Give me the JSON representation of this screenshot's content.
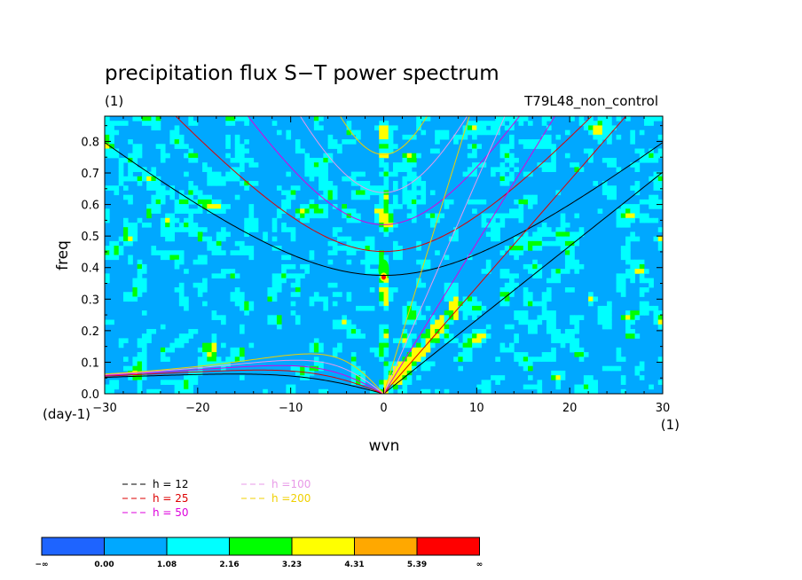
{
  "chart_data": {
    "type": "heatmap",
    "title": "precipitation flux S−T power spectrum",
    "units_left": "(1)",
    "subtitle_right": "T79L48_non_control",
    "xlabel": "wvn",
    "ylabel": "freq",
    "x_unit": "(1)",
    "y_unit": "(day-1)",
    "xlim": [
      -30,
      30
    ],
    "ylim": [
      0,
      0.88
    ],
    "x_ticks": [
      "−30",
      "−20",
      "−10",
      "0",
      "10",
      "20",
      "30"
    ],
    "x_tick_values": [
      -30,
      -20,
      -10,
      0,
      10,
      20,
      30
    ],
    "y_ticks": [
      "0.0",
      "0.1",
      "0.2",
      "0.3",
      "0.4",
      "0.5",
      "0.6",
      "0.7",
      "0.8"
    ],
    "y_tick_values": [
      0,
      0.1,
      0.2,
      0.3,
      0.4,
      0.5,
      0.6,
      0.7,
      0.8
    ],
    "colorbar": {
      "labels": [
        "−∞",
        "0.00",
        "1.08",
        "2.16",
        "3.23",
        "4.31",
        "5.39",
        "∞"
      ],
      "colors": [
        "#1e64ff",
        "#00a8ff",
        "#00ffff",
        "#00ff00",
        "#ffff00",
        "#ffa800",
        "#ff0000"
      ]
    },
    "field_colors": {
      "background": "#00a8ff",
      "low": "#00ffff",
      "mid": "#00ff00",
      "high": "#ffff00",
      "peak": "#ff0000"
    },
    "dispersion_curves": [
      {
        "name": "h = 12",
        "h": 12,
        "color": "#000000"
      },
      {
        "name": "h = 25",
        "h": 25,
        "color": "#dd0000"
      },
      {
        "name": "h = 50",
        "h": 50,
        "color": "#dd00dd"
      },
      {
        "name": "h =100",
        "h": 100,
        "color": "#e89ae8"
      },
      {
        "name": "h =200",
        "h": 200,
        "color": "#f0d000"
      }
    ],
    "legend_placement": "bottom-left"
  }
}
